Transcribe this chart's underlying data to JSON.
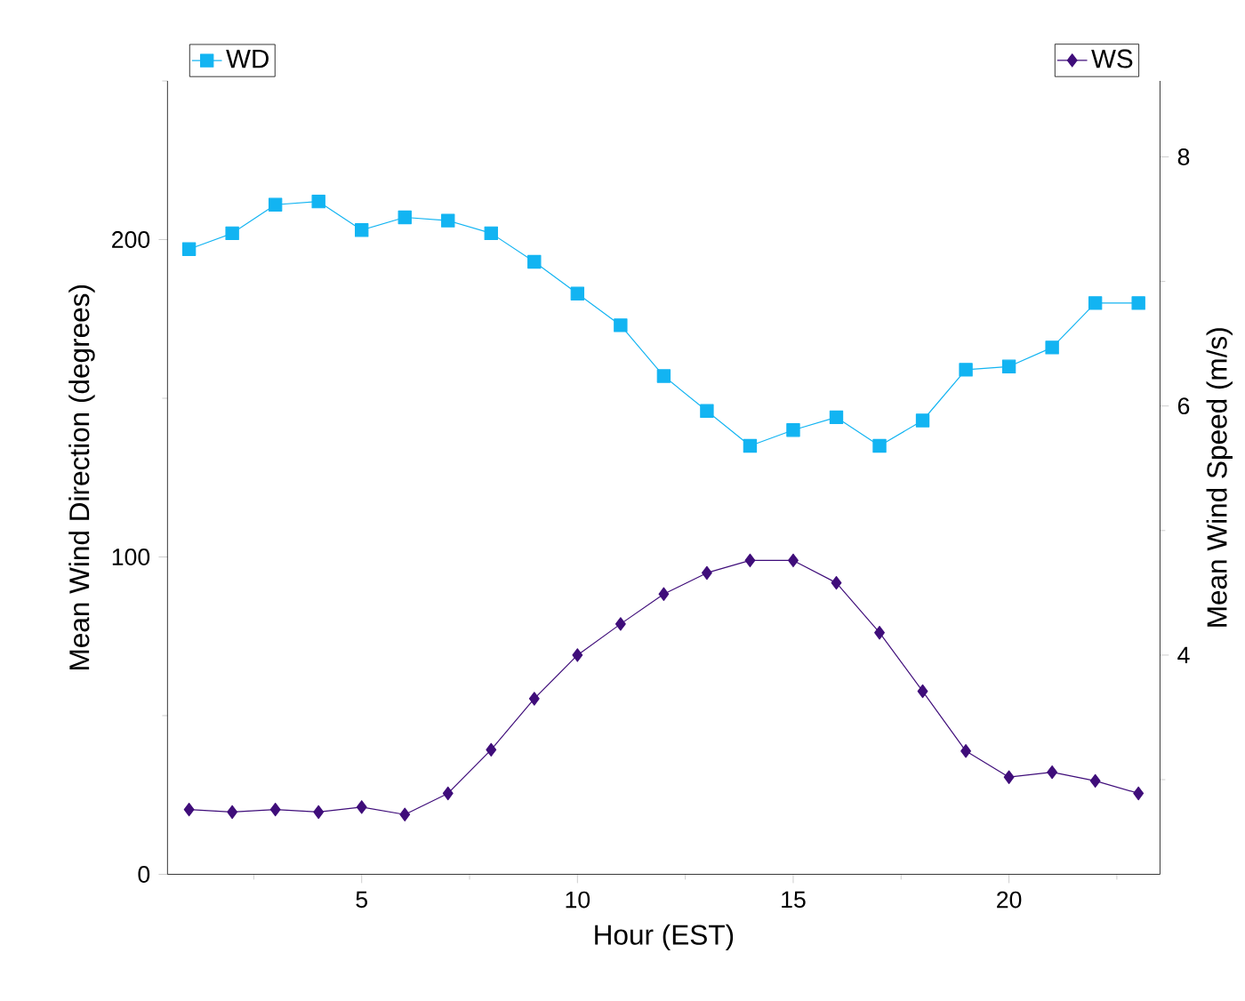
{
  "chart_data": {
    "type": "line",
    "xlabel": "Hour (EST)",
    "ylabel": "Mean Wind Direction (degrees)",
    "y2label": "Mean Wind Speed (m/s)",
    "x": [
      1,
      2,
      3,
      4,
      5,
      6,
      7,
      8,
      9,
      10,
      11,
      12,
      13,
      14,
      15,
      16,
      17,
      18,
      19,
      20,
      21,
      22,
      23
    ],
    "series": [
      {
        "name": "WD",
        "color": "#12b4f2",
        "marker": "square",
        "axis": "y",
        "values": [
          197,
          202,
          211,
          212,
          203,
          207,
          206,
          202,
          193,
          183,
          173,
          157,
          146,
          135,
          140,
          144,
          135,
          143,
          159,
          160,
          166,
          180,
          180
        ]
      },
      {
        "name": "WS",
        "color": "#3f0d7a",
        "marker": "diamond",
        "axis": "y2",
        "values": [
          2.76,
          2.74,
          2.76,
          2.74,
          2.78,
          2.72,
          2.89,
          3.24,
          3.65,
          4.0,
          4.25,
          4.49,
          4.66,
          4.76,
          4.76,
          4.58,
          4.18,
          3.71,
          3.23,
          3.02,
          3.06,
          2.99,
          2.89
        ]
      }
    ],
    "xlim": [
      0.5,
      23.5
    ],
    "xticks": [
      {
        "value": 2.5,
        "label": null
      },
      5,
      {
        "value": 7.5,
        "label": null
      },
      10,
      {
        "value": 12.5,
        "label": null
      },
      15,
      {
        "value": 17.5,
        "label": null
      },
      20,
      {
        "value": 22.5,
        "label": null
      }
    ],
    "ylim": [
      0,
      250
    ],
    "yticks": [
      0,
      {
        "value": 50,
        "label": null
      },
      100,
      {
        "value": 150,
        "label": null
      },
      200,
      {
        "value": 250,
        "label": null
      }
    ],
    "y2lim": [
      2.24,
      8.61
    ],
    "y2ticks": [
      {
        "value": 3,
        "label": null
      },
      4,
      {
        "value": 5,
        "label": null
      },
      6,
      {
        "value": 7,
        "label": null
      },
      8
    ],
    "legend": "top",
    "line_style": "solid"
  }
}
